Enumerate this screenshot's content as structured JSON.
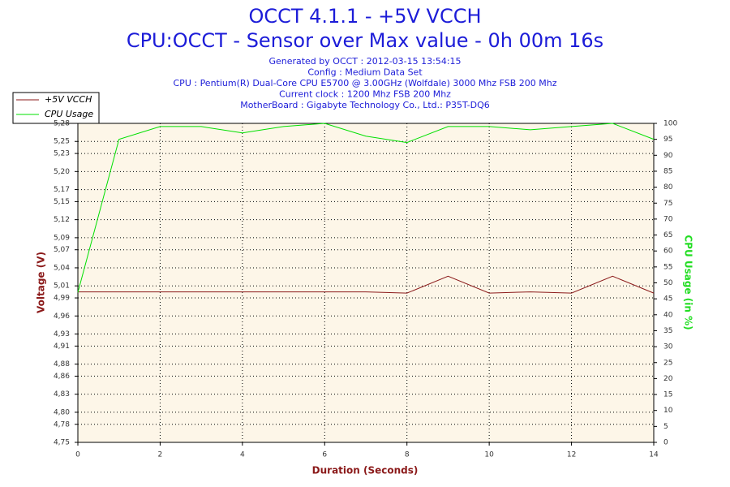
{
  "chart_data": {
    "type": "line",
    "title": "OCCT 4.1.1 - +5V VCCH",
    "subtitle": "CPU:OCCT - Sensor over Max value - 0h 00m 16s",
    "info": [
      "Generated by OCCT : 2012-03-15 13:54:15",
      "Config : Medium Data Set",
      "CPU : Pentium(R) Dual-Core CPU E5700 @ 3.00GHz (Wolfdale) 3000 Mhz FSB 200 Mhz",
      "Current clock : 1200 Mhz FSB 200 Mhz",
      "MotherBoard : Gigabyte Technology Co., Ltd.: P35T-DQ6"
    ],
    "x_label": "Duration (Seconds)",
    "y_label": "Voltage (V)",
    "y2_label": "CPU Usage (in %)",
    "x": [
      0,
      1,
      2,
      3,
      4,
      5,
      6,
      7,
      8,
      9,
      10,
      11,
      12,
      13,
      14
    ],
    "series": [
      {
        "name": "+5V VCCH",
        "color": "#8b1a1a",
        "values": [
          5.0,
          5.0,
          5.0,
          5.0,
          5.0,
          5.0,
          5.0,
          5.0,
          4.998,
          5.026,
          4.998,
          5.0,
          4.998,
          5.026,
          4.998
        ]
      },
      {
        "name": "CPU Usage",
        "color": "#00e000",
        "axis": "y2",
        "values": [
          47,
          95,
          99,
          99,
          97,
          99,
          100,
          96,
          94,
          99,
          99,
          98,
          99,
          100,
          95
        ]
      }
    ],
    "xlim": [
      0,
      14
    ],
    "xticks": [
      0,
      2,
      4,
      6,
      8,
      10,
      12,
      14
    ],
    "ylim": [
      4.75,
      5.28
    ],
    "yticks": [
      {
        "value": 4.75,
        "label": "4,75"
      },
      {
        "value": 4.78,
        "label": "4,78"
      },
      {
        "value": 4.8,
        "label": "4,80"
      },
      {
        "value": 4.83,
        "label": "4,83"
      },
      {
        "value": 4.86,
        "label": "4,86"
      },
      {
        "value": 4.88,
        "label": "4,88"
      },
      {
        "value": 4.91,
        "label": "4,91"
      },
      {
        "value": 4.93,
        "label": "4,93"
      },
      {
        "value": 4.96,
        "label": "4,96"
      },
      {
        "value": 4.99,
        "label": "4,99"
      },
      {
        "value": 5.01,
        "label": "5,01"
      },
      {
        "value": 5.04,
        "label": "5,04"
      },
      {
        "value": 5.07,
        "label": "5,07"
      },
      {
        "value": 5.09,
        "label": "5,09"
      },
      {
        "value": 5.12,
        "label": "5,12"
      },
      {
        "value": 5.15,
        "label": "5,15"
      },
      {
        "value": 5.17,
        "label": "5,17"
      },
      {
        "value": 5.2,
        "label": "5,20"
      },
      {
        "value": 5.23,
        "label": "5,23"
      },
      {
        "value": 5.25,
        "label": "5,25"
      },
      {
        "value": 5.28,
        "label": "5,28"
      }
    ],
    "y2lim": [
      0,
      100
    ],
    "y2ticks": [
      0,
      5,
      10,
      15,
      20,
      25,
      30,
      35,
      40,
      45,
      50,
      55,
      60,
      65,
      70,
      75,
      80,
      85,
      90,
      95,
      100
    ],
    "grid": true,
    "legend": "top-left"
  }
}
